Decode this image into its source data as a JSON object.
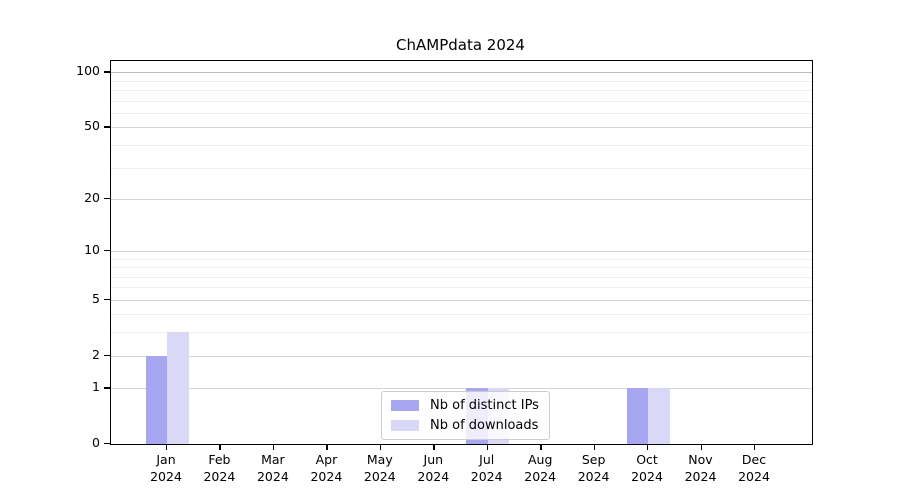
{
  "title": "ChAMPdata 2024",
  "chart_data": {
    "type": "bar",
    "title": "ChAMPdata 2024",
    "xlabel": "",
    "ylabel": "",
    "year": "2024",
    "months": [
      "Jan",
      "Feb",
      "Mar",
      "Apr",
      "May",
      "Jun",
      "Jul",
      "Aug",
      "Sep",
      "Oct",
      "Nov",
      "Dec"
    ],
    "categories": [
      "Jan 2024",
      "Feb 2024",
      "Mar 2024",
      "Apr 2024",
      "May 2024",
      "Jun 2024",
      "Jul 2024",
      "Aug 2024",
      "Sep 2024",
      "Oct 2024",
      "Nov 2024",
      "Dec 2024"
    ],
    "series": [
      {
        "name": "Nb of distinct IPs",
        "color": "#a6a6f1",
        "values": [
          2,
          0,
          0,
          0,
          0,
          0,
          1,
          0,
          0,
          1,
          0,
          0
        ]
      },
      {
        "name": "Nb of downloads",
        "color": "#d9d9f7",
        "values": [
          3,
          0,
          0,
          0,
          0,
          0,
          1,
          0,
          0,
          1,
          0,
          0
        ]
      }
    ],
    "yscale": "log1p",
    "yticks": [
      0,
      1,
      2,
      5,
      10,
      20,
      50,
      100
    ],
    "minor_yticks": [
      3,
      4,
      6,
      7,
      8,
      9,
      30,
      40,
      60,
      70,
      80,
      90
    ],
    "ylim": [
      0,
      116
    ],
    "grid": true,
    "legend_position": "lower center"
  }
}
